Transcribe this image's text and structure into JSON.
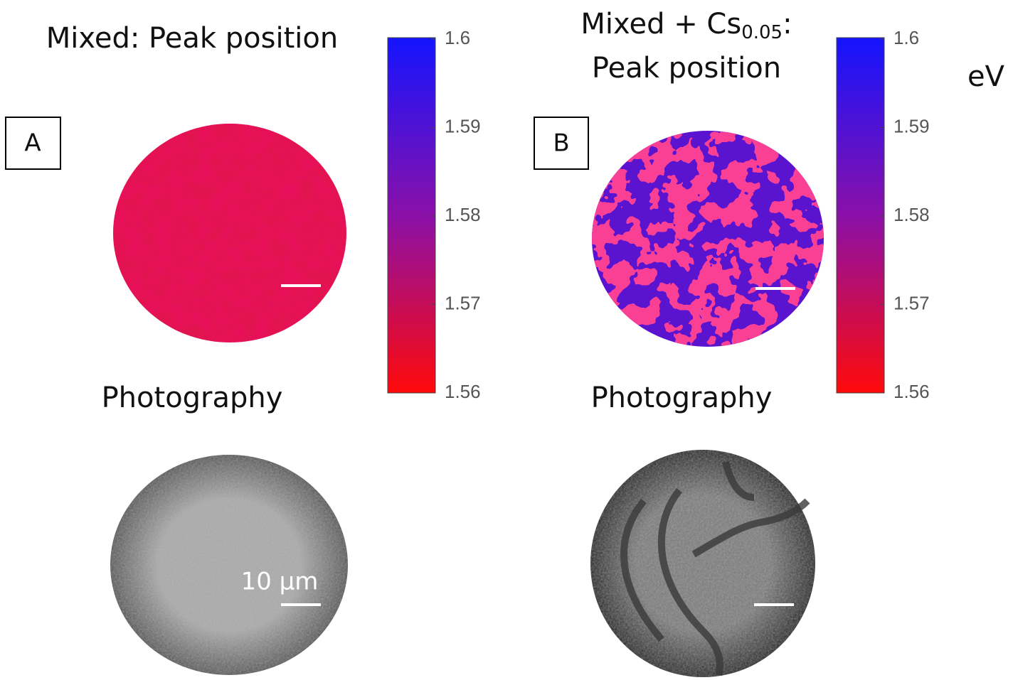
{
  "panels": [
    {
      "label": "A",
      "title": "Mixed: Peak position",
      "photo_title": "Photography",
      "scale_label": "10 µm",
      "colorbar": {
        "lim": [
          1.56,
          1.6
        ],
        "ticks": [
          1.6,
          1.59,
          1.58,
          1.57,
          1.56
        ]
      }
    },
    {
      "label": "B",
      "title_main": "Mixed + Cs",
      "title_sub": "0.05",
      "title_end": ":",
      "title_line2": "Peak position",
      "photo_title": "Photography",
      "colorbar": {
        "lim": [
          1.56,
          1.6
        ],
        "ticks": [
          1.6,
          1.59,
          1.58,
          1.57,
          1.56
        ]
      }
    }
  ],
  "unit": "eV"
}
